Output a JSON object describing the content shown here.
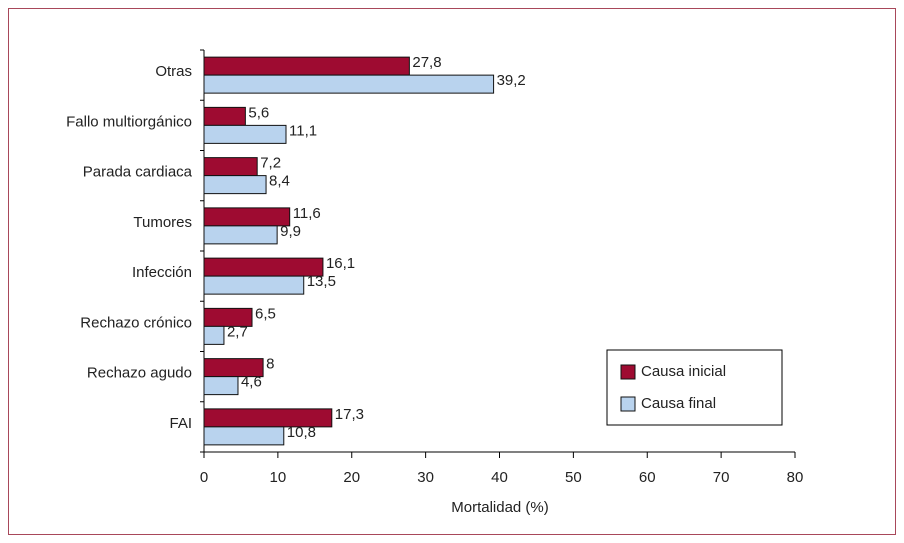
{
  "chart_data": {
    "type": "hbar",
    "xlabel": "Mortalidad (%)",
    "categories": [
      "Otras",
      "Fallo multiorgánico",
      "Parada cardiaca",
      "Tumores",
      "Infección",
      "Rechazo crónico",
      "Rechazo agudo",
      "FAI"
    ],
    "series": [
      {
        "name": "Causa inicial",
        "color": "#9e0b31",
        "values": [
          27.8,
          5.6,
          7.2,
          11.6,
          16.1,
          6.5,
          8,
          17.3
        ],
        "value_labels": [
          "27,8",
          "5,6",
          "7,2",
          "11,6",
          "16,1",
          "6,5",
          "8",
          "17,3"
        ]
      },
      {
        "name": "Causa final",
        "color": "#b9d3ee",
        "values": [
          39.2,
          11.1,
          8.4,
          9.9,
          13.5,
          2.7,
          4.6,
          10.8
        ],
        "value_labels": [
          "39,2",
          "11,1",
          "8,4",
          "9,9",
          "13,5",
          "2,7",
          "4,6",
          "10,8"
        ]
      }
    ],
    "xlim": [
      0,
      80
    ],
    "xticks": [
      0,
      10,
      20,
      30,
      40,
      50,
      60,
      70,
      80
    ],
    "legend": "lower right"
  }
}
